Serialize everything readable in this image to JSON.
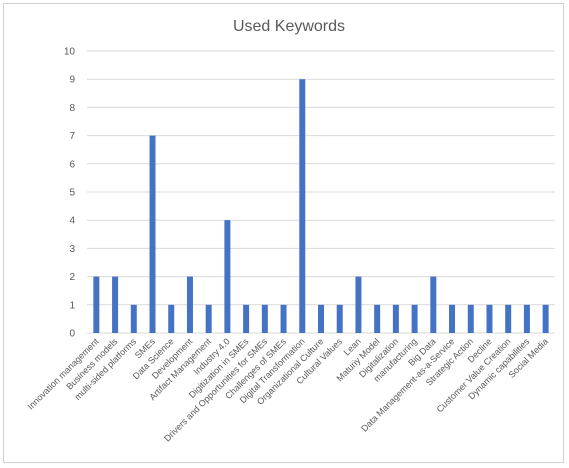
{
  "chart_data": {
    "type": "bar",
    "title": "Used Keywords",
    "xlabel": "",
    "ylabel": "",
    "ylim": [
      0,
      10
    ],
    "yticks": [
      0,
      1,
      2,
      3,
      4,
      5,
      6,
      7,
      8,
      9,
      10
    ],
    "grid": true,
    "legend": "none",
    "bar_color": "#4472c4",
    "categories": [
      "Innovation management",
      "Business models",
      "multi-sided platforms",
      "SMEs",
      "Data Science",
      "Development",
      "Artifact Management",
      "Industry 4.0",
      "Digitization in SMEs",
      "Drivers and Opportunities for SMEs",
      "Challenges of SMEs",
      "Digital Transformation",
      "Organizational Culture",
      "Cultural Values",
      "Lean",
      "Maturiy Model",
      "Digitalization",
      "manufacturing",
      "Big Data",
      "Data Management-as-a-Service",
      "Strategic Action",
      "Decline",
      "Customer Value Creation",
      "Dynamic capabilities",
      "Social Media"
    ],
    "values": [
      2,
      2,
      1,
      7,
      1,
      2,
      1,
      4,
      1,
      1,
      1,
      9,
      1,
      1,
      2,
      1,
      1,
      1,
      2,
      1,
      1,
      1,
      1,
      1,
      1
    ]
  }
}
